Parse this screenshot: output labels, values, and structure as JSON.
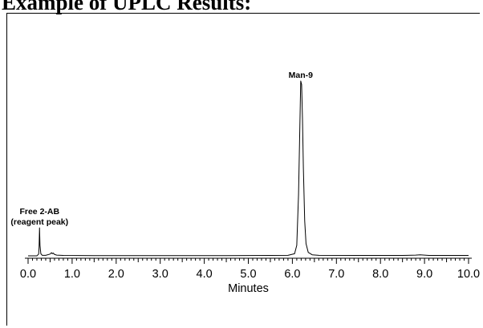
{
  "page": {
    "heading": "Example of UPLC Results:"
  },
  "chart_data": {
    "type": "line",
    "xlabel": "Minutes",
    "ylabel": "",
    "xlim": [
      0.0,
      10.0
    ],
    "ylim": [
      0,
      1.0
    ],
    "x_ticks": [
      "0.0",
      "1.0",
      "2.0",
      "3.0",
      "4.0",
      "5.0",
      "6.0",
      "7.0",
      "8.0",
      "9.0",
      "10.0"
    ],
    "grid": false,
    "legend": "none",
    "line_color": "#000000",
    "series": [
      {
        "x": [
          0.0,
          0.2,
          0.24,
          0.25,
          0.26,
          0.27,
          0.29,
          0.32,
          0.4,
          0.5,
          0.53,
          0.55,
          0.57,
          0.6,
          0.65,
          0.8,
          1.5,
          2.5,
          3.5,
          4.5,
          5.5,
          5.9,
          6.05,
          6.1,
          6.14,
          6.17,
          6.19,
          6.21,
          6.23,
          6.25,
          6.28,
          6.31,
          6.36,
          6.45,
          6.6,
          7.5,
          8.5,
          8.8,
          8.9,
          9.0,
          9.1,
          10.0
        ],
        "y": [
          0.0,
          0.0,
          0.01,
          0.05,
          0.16,
          0.06,
          0.012,
          0.003,
          0.003,
          0.01,
          0.018,
          0.012,
          0.016,
          0.008,
          0.004,
          0.002,
          0.001,
          0.001,
          0.001,
          0.001,
          0.002,
          0.003,
          0.012,
          0.06,
          0.35,
          0.74,
          1.0,
          0.98,
          0.78,
          0.5,
          0.2,
          0.07,
          0.02,
          0.006,
          0.003,
          0.002,
          0.002,
          0.004,
          0.006,
          0.004,
          0.002,
          0.002
        ]
      }
    ],
    "annotations": [
      {
        "lines": [
          "Free 2-AB",
          "(reagent peak)"
        ],
        "x": 0.26
      },
      {
        "lines": [
          "Man-9"
        ],
        "x": 6.19
      }
    ]
  }
}
